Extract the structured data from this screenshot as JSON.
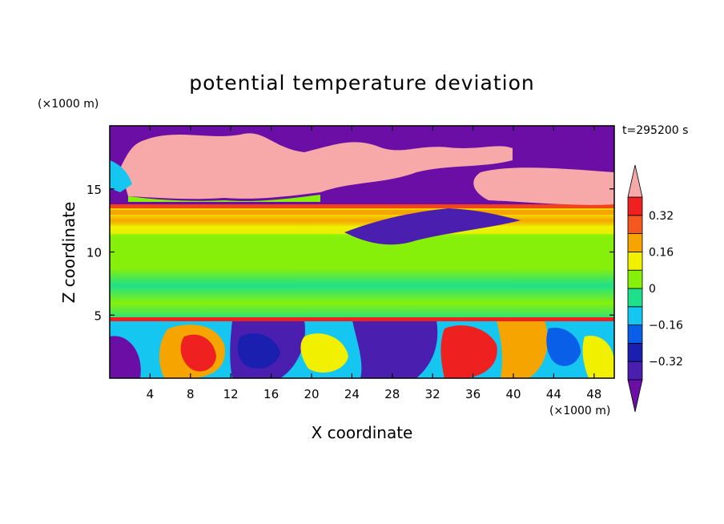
{
  "chart_data": {
    "type": "heatmap",
    "title": "potential temperature deviation",
    "xlabel": "X coordinate",
    "ylabel": "Z coordinate",
    "x_unit_label": "(×1000 m)",
    "y_unit_label": "(×1000 m)",
    "time_label": "t=295200 s",
    "xlim": [
      0,
      50
    ],
    "ylim": [
      0,
      20
    ],
    "x_ticks": [
      4,
      8,
      12,
      16,
      20,
      24,
      28,
      32,
      36,
      40,
      44,
      48
    ],
    "x_tick_labels": [
      "4",
      "8",
      "12",
      "16",
      "20",
      "24",
      "28",
      "32",
      "36",
      "40",
      "44",
      "48"
    ],
    "y_ticks": [
      5,
      10,
      15
    ],
    "y_tick_labels": [
      "5",
      "10",
      "15"
    ],
    "colorbar": {
      "levels": [
        -0.4,
        -0.32,
        -0.24,
        -0.16,
        -0.08,
        0,
        0.08,
        0.16,
        0.24,
        0.32,
        0.4
      ],
      "labeled_levels": [
        -0.32,
        -0.16,
        0,
        0.16,
        0.32
      ],
      "labels": [
        "−0.32",
        "−0.16",
        "0",
        "0.16",
        "0.32"
      ],
      "colors": [
        "#6a0ea6",
        "#4a1fb0",
        "#1a1fb0",
        "#0a5fe8",
        "#15c7f0",
        "#1fe08a",
        "#86f00a",
        "#f0f000",
        "#f5a400",
        "#f5581e",
        "#ef2020",
        "#f7a8a8"
      ],
      "extend": "both"
    },
    "layers": [
      {
        "z_range": [
          0,
          4.8
        ],
        "description_value": "mixed −0.4 to 0.4 turbulent boundary layer"
      },
      {
        "z_range": [
          4.8,
          13
        ],
        "description_value": "near 0 to 0.08"
      },
      {
        "z_range": [
          13,
          20
        ],
        "description_value": "above 0.4 and below −0.4 patches"
      }
    ]
  },
  "colors": {
    "background": "#ffffff",
    "frame": "#000000",
    "purple": "#6a0ea6",
    "pink": "#f7a8a8",
    "green": "#86f00a",
    "teal": "#1fe08a",
    "cyan": "#15c7f0",
    "orange": "#f5a400",
    "red": "#ef2020",
    "blue": "#1a1fb0"
  }
}
